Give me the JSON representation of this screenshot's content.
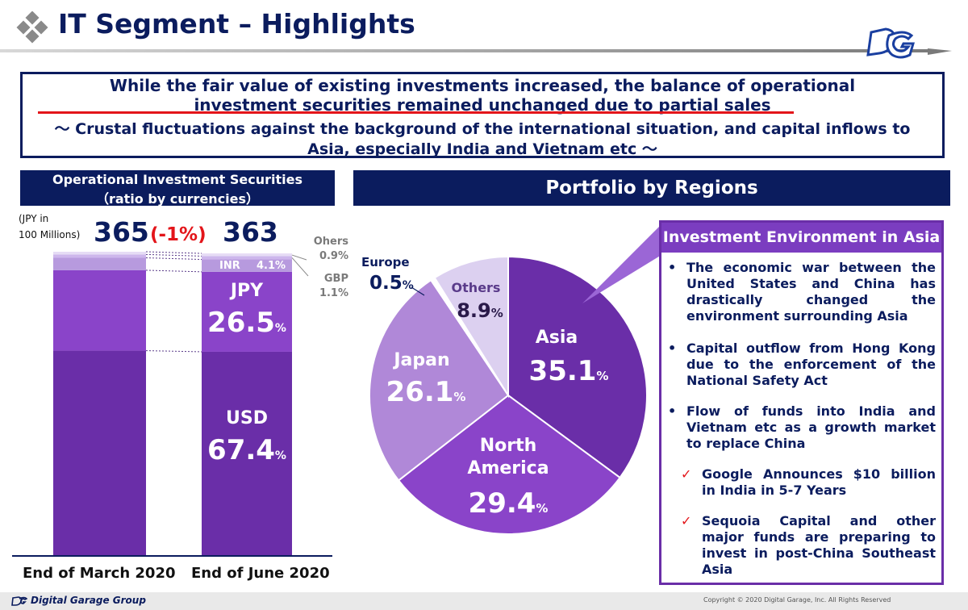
{
  "header": {
    "title": "IT Segment – Highlights"
  },
  "headline": {
    "line1": "While the fair value of existing investments increased, the balance of operational",
    "line2": "investment securities remained unchanged due to partial sales",
    "line3": "～ Crustal fluctuations against the background of the international situation, and capital inflows to",
    "line4": "Asia, especially India and Vietnam etc ～"
  },
  "left_panel": {
    "title_line1": "Operational Investment Securities",
    "title_line2": "（ratio by currencies）",
    "unit_line1": "(JPY in",
    "unit_line2": "100 Millions)",
    "total_march": "365",
    "total_june": "363",
    "change": "(-1%)",
    "segments": {
      "usd_name": "USD",
      "usd_value": "67.4",
      "jpy_name": "JPY",
      "jpy_value": "26.5",
      "inr_name": "INR",
      "inr_value": "4.1%",
      "gbp_name": "GBP",
      "gbp_value": "1.1",
      "others_name": "Ohers",
      "others_value": "0.9",
      "percent": "%"
    }
  },
  "right_panel": {
    "title": "Portfolio by Regions",
    "labels": {
      "asia": "Asia",
      "asia_value": "35.1",
      "na_line1": "North",
      "na_line2": "America",
      "na_value": "29.4",
      "japan": "Japan",
      "japan_value": "26.1",
      "others": "Others",
      "others_value": "8.9",
      "europe": "Europe",
      "europe_value": "0.5",
      "percent": "%"
    }
  },
  "callout": {
    "title": "Investment Environment in Asia",
    "bullets": [
      "The economic war between the United States and China has drastically changed the environment surrounding Asia",
      "Capital outflow from Hong Kong due to the enforcement of the National Safety Act",
      "Flow of funds into India and Vietnam etc as a growth market to replace China"
    ],
    "checks": [
      "Google Announces $10 billion in India in 5-7 Years",
      "Sequoia Capital and other major funds are preparing to invest in post-China Southeast Asia"
    ],
    "bullet_mark": "•",
    "check_mark": "✓"
  },
  "footer": {
    "brand": "Digital Garage Group",
    "copyright": "Copyright © 2020 Digital Garage, Inc. All Rights Reserved"
  },
  "colors": {
    "navy": "#0b1c5e",
    "red": "#e3151a",
    "usd": "#6a2ea8",
    "jpy": "#8a44c9",
    "inr": "#b79ade",
    "gbp": "#cdb6ec",
    "others": "#e6dcf5",
    "asia": "#6a2ea8",
    "north_america": "#8a44c9",
    "japan": "#b088d8",
    "others_pie": "#dcd0f0",
    "europe": "#ffffff"
  },
  "chart_data": [
    {
      "type": "bar",
      "title": "Operational Investment Securities (ratio by currencies)",
      "categories": [
        "End of March 2020",
        "End of June 2020"
      ],
      "totals": [
        365,
        363
      ],
      "series": [
        {
          "name": "USD",
          "values": [
            null,
            67.4
          ]
        },
        {
          "name": "JPY",
          "values": [
            null,
            26.5
          ]
        },
        {
          "name": "INR",
          "values": [
            null,
            4.1
          ]
        },
        {
          "name": "GBP",
          "values": [
            null,
            1.1
          ]
        },
        {
          "name": "Ohers",
          "values": [
            null,
            0.9
          ]
        }
      ],
      "march_segment_shares": [
        67.4,
        26.5,
        4.1,
        1.1,
        0.9
      ],
      "ylabel": "(JPY in 100 Millions)",
      "change_label": "(-1%)"
    },
    {
      "type": "pie",
      "title": "Portfolio by Regions",
      "categories": [
        "Asia",
        "North America",
        "Japan",
        "Europe",
        "Others"
      ],
      "values": [
        35.1,
        29.4,
        26.1,
        0.5,
        8.9
      ],
      "unit": "%"
    }
  ]
}
